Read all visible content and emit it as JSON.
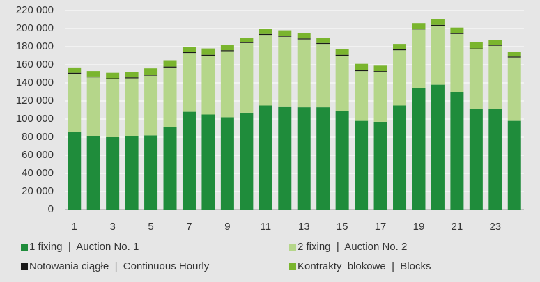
{
  "chart_data": {
    "type": "stacked_bar",
    "categories": [
      "1",
      null,
      "3",
      null,
      "5",
      null,
      "7",
      null,
      "9",
      null,
      "11",
      null,
      "13",
      null,
      "15",
      null,
      "17",
      null,
      "19",
      null,
      "21",
      null,
      "23",
      null
    ],
    "series": [
      {
        "name": "1 fixing  |  Auction No. 1",
        "color": "#1f8c3b",
        "values": [
          86000,
          81000,
          80000,
          81000,
          82000,
          91000,
          108000,
          105000,
          102000,
          107000,
          115000,
          114000,
          113000,
          113000,
          109000,
          98000,
          97000,
          115000,
          134000,
          138000,
          130000,
          111000,
          111000,
          98000
        ]
      },
      {
        "name": "2 fixing  |  Auction No. 2",
        "color": "#b5d68a",
        "values": [
          64000,
          65000,
          64000,
          64000,
          66000,
          66000,
          65000,
          65000,
          73000,
          77000,
          78000,
          77000,
          75000,
          70000,
          61000,
          55000,
          55000,
          61000,
          65000,
          65000,
          64000,
          66000,
          70000,
          70000
        ]
      },
      {
        "name": "Notowania ciągłe  |  Continuous Hourly",
        "color": "#1a1a1a",
        "values": [
          1000,
          1000,
          1000,
          1000,
          1000,
          1000,
          1000,
          1000,
          1000,
          1000,
          1000,
          1000,
          1000,
          1000,
          1000,
          1000,
          1000,
          1000,
          1000,
          1000,
          1000,
          1000,
          1000,
          1000
        ]
      },
      {
        "name": "Kontrakty  blokowe  |  Blocks",
        "color": "#7ab52e",
        "values": [
          6000,
          6000,
          6000,
          6000,
          7000,
          7000,
          6000,
          7000,
          6000,
          5000,
          6000,
          6000,
          6000,
          6000,
          6000,
          7000,
          6000,
          6000,
          6000,
          6000,
          6000,
          7000,
          5000,
          5000
        ]
      }
    ],
    "ylim": [
      0,
      220000
    ],
    "yticks": [
      0,
      {
        "value": 20000,
        "label": "20 000"
      },
      {
        "value": 40000,
        "label": "40 000"
      },
      {
        "value": 60000,
        "label": "60 000"
      },
      {
        "value": 80000,
        "label": "80 000"
      },
      {
        "value": 100000,
        "label": "100 000"
      },
      {
        "value": 120000,
        "label": "120 000"
      },
      {
        "value": 140000,
        "label": "140 000"
      },
      {
        "value": 160000,
        "label": "160 000"
      },
      {
        "value": 180000,
        "label": "180 000"
      },
      {
        "value": 200000,
        "label": "200 000"
      },
      {
        "value": 220000,
        "label": "220 000"
      }
    ],
    "grid": true
  }
}
